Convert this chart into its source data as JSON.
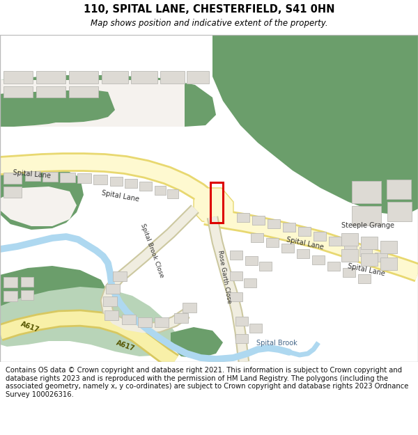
{
  "title": "110, SPITAL LANE, CHESTERFIELD, S41 0HN",
  "subtitle": "Map shows position and indicative extent of the property.",
  "footer": "Contains OS data © Crown copyright and database right 2021. This information is subject to Crown copyright and database rights 2023 and is reproduced with the permission of HM Land Registry. The polygons (including the associated geometry, namely x, y co-ordinates) are subject to Crown copyright and database rights 2023 Ordnance Survey 100026316.",
  "bg_color": "#ffffff",
  "map_bg": "#f5f2ee",
  "green_color": "#6b9e6b",
  "light_green": "#b8d4b8",
  "road_fill": "#fef9d0",
  "road_outline": "#e8d870",
  "water_color": "#aed8f0",
  "building_color": "#dddad4",
  "building_edge": "#bbbab5",
  "property_color": "#dd0000",
  "road_label_color": "#333333",
  "label_fontsize": 7,
  "title_fontsize": 10.5,
  "subtitle_fontsize": 8.5,
  "footer_fontsize": 7.2
}
